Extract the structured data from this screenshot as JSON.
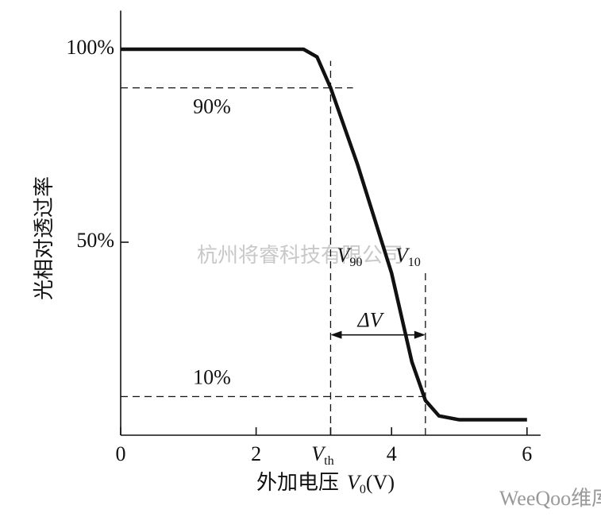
{
  "chart_data": {
    "type": "line",
    "ylabel": "光相对透过率",
    "xlabel": {
      "text": "外加电压",
      "symbol": "V",
      "sub": "0",
      "unit": "(V)"
    },
    "x": [
      0,
      2.7,
      2.9,
      3.1,
      3.5,
      4.0,
      4.3,
      4.5,
      4.7,
      5.0,
      6.0
    ],
    "series": [
      {
        "color": "#111111",
        "values": [
          100,
          100,
          98,
          90,
          70,
          42,
          19,
          9,
          5,
          4,
          4
        ]
      }
    ],
    "xlim": [
      0,
      6.2
    ],
    "ylim": [
      0,
      110
    ],
    "xticks": [
      0,
      2,
      {
        "value": 3.1,
        "label": "V",
        "label_sub": "th"
      },
      4,
      6
    ],
    "yticks": [
      {
        "value": 50,
        "label": "50%"
      },
      {
        "value": 100,
        "label": "100%"
      }
    ],
    "levels": [
      {
        "y": 90,
        "label": "90%",
        "x_end": 3.43
      },
      {
        "y": 10,
        "label": "10%",
        "x_end": 4.5
      }
    ],
    "verticals": [
      {
        "x": 3.1,
        "y_end": 97,
        "label": "V",
        "label_sub": "90"
      },
      {
        "x": 4.5,
        "y_end": 43,
        "label": "V",
        "label_sub": "10"
      }
    ],
    "span": {
      "label": "ΔV",
      "from": 3.1,
      "to": 4.5,
      "y": 26
    },
    "watermark": "杭州将睿科技有限公司",
    "logo": "WeeQoo维库"
  }
}
